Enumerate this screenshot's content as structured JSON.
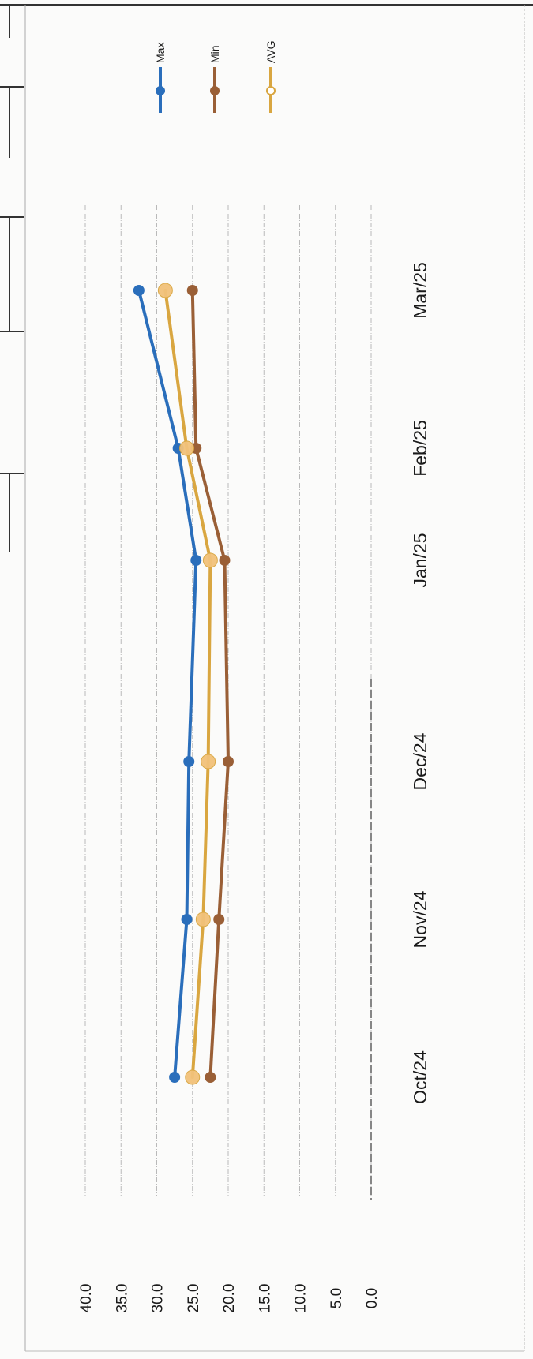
{
  "chart_data": {
    "type": "line",
    "title": "",
    "xlabel": "",
    "ylabel": "",
    "categories": [
      "Oct/24",
      "Nov/24",
      "Dec/24",
      "Jan/25",
      "Feb/25",
      "Mar/25"
    ],
    "y_ticks": [
      "0.0",
      "5.0",
      "10.0",
      "15.0",
      "20.0",
      "25.0",
      "30.0",
      "35.0",
      "40.0"
    ],
    "ylim": [
      0,
      40
    ],
    "grid": true,
    "legend_position": "top-right",
    "orientation": "rotated-90-clockwise",
    "series": [
      {
        "name": "Max",
        "color": "#2a6ebb",
        "marker": "filled-circle",
        "points": [
          [
            "Oct/24",
            27.5
          ],
          [
            "Nov/24",
            25.8
          ],
          [
            "Dec/24",
            25.5
          ],
          [
            "Jan/25",
            24.5
          ],
          [
            "Feb/25",
            27.0
          ],
          [
            "Mar/25",
            32.5
          ]
        ]
      },
      {
        "name": "Min",
        "color": "#9a5f36",
        "marker": "filled-circle",
        "points": [
          [
            "Oct/24",
            22.5
          ],
          [
            "Nov/24",
            21.3
          ],
          [
            "Dec/24",
            20.0
          ],
          [
            "Jan/25",
            20.5
          ],
          [
            "Feb/25",
            24.5
          ],
          [
            "Mar/25",
            25.0
          ]
        ]
      },
      {
        "name": "AVG",
        "color": "#d9a640",
        "marker": "hollow-circle",
        "points": [
          [
            "Oct/24",
            25.0
          ],
          [
            "Nov/24",
            23.5
          ],
          [
            "Dec/24",
            22.8
          ],
          [
            "Jan/25",
            22.5
          ],
          [
            "Feb/25",
            25.8
          ],
          [
            "Mar/25",
            28.8
          ]
        ]
      }
    ]
  }
}
